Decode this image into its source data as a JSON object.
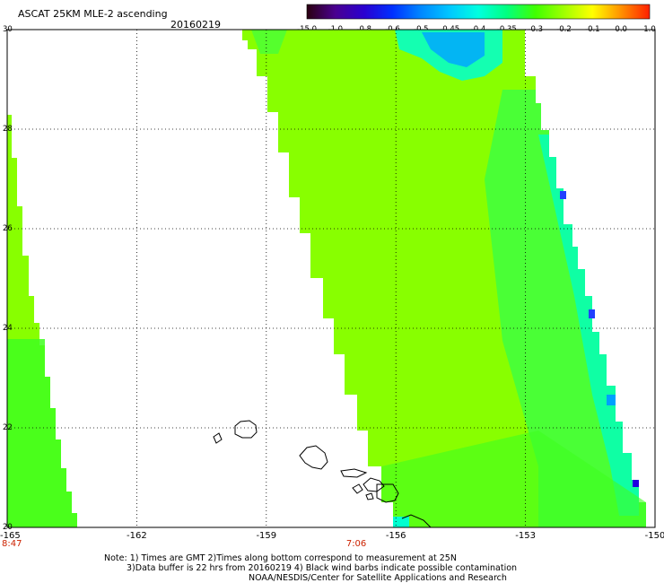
{
  "title": "ASCAT 25KM MLE-2 ascending",
  "date": "20160219",
  "colorbar": {
    "labels": [
      "-15.0",
      "-1.0",
      "-0.8",
      "-0.6",
      "-0.5",
      "-0.45",
      "-0.4",
      "-0.35",
      "-0.3",
      "-0.2",
      "-0.1",
      "0.0",
      "1.0"
    ],
    "colors": [
      "#2a0010",
      "#4a0090",
      "#2a00d0",
      "#0030ff",
      "#0088ff",
      "#00c8ff",
      "#00ffe0",
      "#00ff80",
      "#40ff00",
      "#a0ff00",
      "#ffff00",
      "#ff9000",
      "#ff2000"
    ]
  },
  "map": {
    "lon_range": [
      -165,
      -150
    ],
    "lat_range": [
      20,
      30
    ],
    "lat_ticks": [
      "30",
      "28",
      "26",
      "24",
      "22",
      "20"
    ],
    "lon_ticks": [
      "-165",
      "-162",
      "-159",
      "-156",
      "-153",
      "-150"
    ],
    "pass_times": [
      {
        "lon": -165,
        "label": "8:47"
      },
      {
        "lon": -157,
        "label": "7:06"
      }
    ]
  },
  "notes": [
    "Note: 1) Times are GMT 2)Times along bottom correspond to measurement at 25N",
    "3)Data buffer is 22 hrs from 20160219 4) Black wind barbs indicate possible contamination",
    "NOAA/NESDIS/Center for Satellite Applications and Research"
  ]
}
